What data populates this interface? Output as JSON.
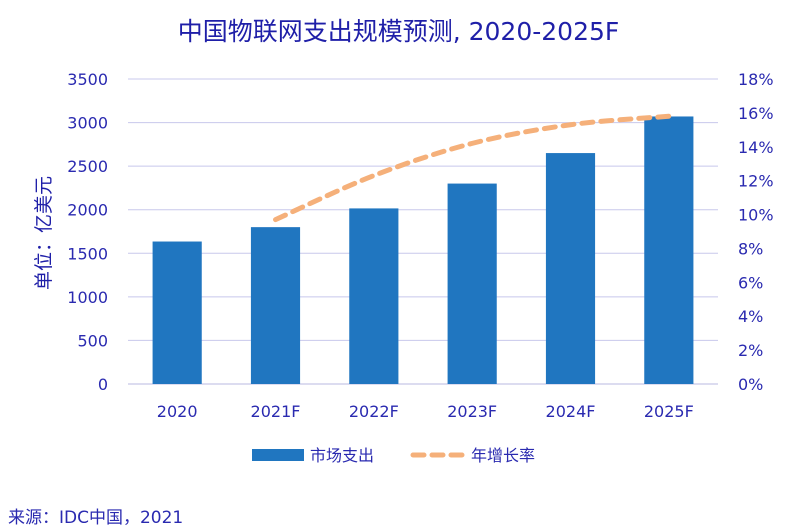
{
  "chart_data": {
    "type": "bar",
    "title": "中国物联网支出规模预测, 2020-2025F",
    "ylabel": "单位：亿美元",
    "ylabel_right": "",
    "categories": [
      "2020",
      "2021F",
      "2022F",
      "2023F",
      "2024F",
      "2025F"
    ],
    "series": [
      {
        "name": "市场支出",
        "type": "bar",
        "axis": "left",
        "color": "#2076c0",
        "values": [
          1635,
          1800,
          2015,
          2300,
          2650,
          3070
        ]
      },
      {
        "name": "年增长率",
        "type": "line",
        "style": "dashed",
        "axis": "right",
        "color": "#f5b07a",
        "values": [
          null,
          0.097,
          0.123,
          0.142,
          0.153,
          0.158
        ]
      }
    ],
    "ylim": [
      0,
      3500
    ],
    "yticks": [
      "0",
      "500",
      "1000",
      "1500",
      "2000",
      "2500",
      "3000",
      "3500"
    ],
    "y2lim": [
      0,
      0.18
    ],
    "y2ticks": [
      "0%",
      "2%",
      "4%",
      "6%",
      "8%",
      "10%",
      "12%",
      "14%",
      "16%",
      "18%"
    ],
    "grid": true,
    "legend_position": "bottom"
  },
  "source": "来源：IDC中国，2021"
}
